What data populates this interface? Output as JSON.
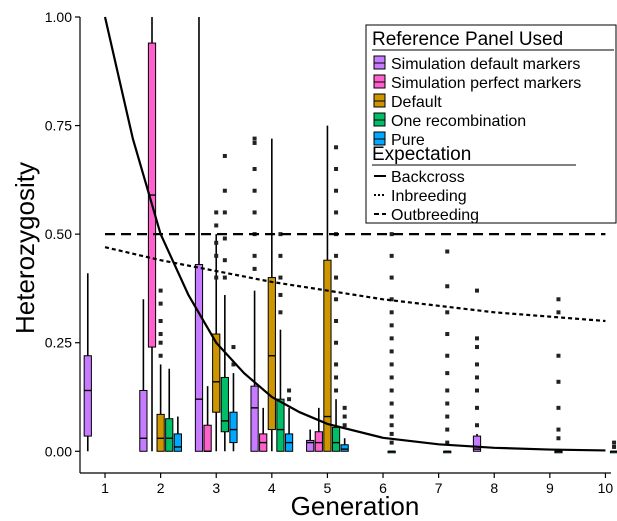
{
  "chart_data": {
    "type": "box",
    "xlabel": "Generation",
    "ylabel": "Heterozygosity",
    "categories": [
      "1",
      "2",
      "3",
      "4",
      "5",
      "6",
      "7",
      "8",
      "9",
      "10"
    ],
    "xlim": [
      0.55,
      10.1
    ],
    "ylim": [
      -0.05,
      1.0
    ],
    "yticks": [
      0.0,
      0.25,
      0.5,
      0.75,
      1.0
    ],
    "ytick_labels": [
      "0.00",
      "0.25",
      "0.50",
      "0.75",
      "1.00"
    ],
    "grid": false,
    "legend_position": "top-right",
    "legend": {
      "fill_title": "Reference Panel Used",
      "fill_entries": [
        {
          "name": "Simulation default markers",
          "color": "#c77cff"
        },
        {
          "name": "Simulation perfect markers",
          "color": "#ff61cc"
        },
        {
          "name": "Default",
          "color": "#cd9600"
        },
        {
          "name": "One recombination",
          "color": "#00be67"
        },
        {
          "name": "Pure",
          "color": "#00a9ff"
        }
      ],
      "line_title": "Expectation",
      "line_entries": [
        {
          "name": "Backcross",
          "style": "solid"
        },
        {
          "name": "Inbreeding",
          "style": "dotted"
        },
        {
          "name": "Outbreeding",
          "style": "dashed"
        }
      ]
    },
    "series_colors": {
      "sim_default": "#c77cff",
      "sim_perfect": "#ff61cc",
      "default": "#cd9600",
      "one_recomb": "#00be67",
      "pure": "#00a9ff"
    },
    "boxes": [
      {
        "gen": 1,
        "series": "sim_default",
        "q1": 0.035,
        "median": 0.14,
        "q3": 0.22,
        "whisker_low": 0.0,
        "whisker_high": 0.41,
        "outliers": []
      },
      {
        "gen": 2,
        "series": "sim_default",
        "q1": 0.0,
        "median": 0.03,
        "q3": 0.14,
        "whisker_low": 0.0,
        "whisker_high": 0.35,
        "outliers": []
      },
      {
        "gen": 2,
        "series": "sim_perfect",
        "q1": 0.24,
        "median": 0.59,
        "q3": 0.94,
        "whisker_low": 0.0,
        "whisker_high": 1.0,
        "outliers": []
      },
      {
        "gen": 2,
        "series": "default",
        "q1": 0.0,
        "median": 0.03,
        "q3": 0.085,
        "whisker_low": 0.0,
        "whisker_high": 0.2,
        "outliers": [
          0.37,
          0.34,
          0.3,
          0.27,
          0.25,
          0.22
        ]
      },
      {
        "gen": 2,
        "series": "one_recomb",
        "q1": 0.0,
        "median": 0.03,
        "q3": 0.075,
        "whisker_low": 0.0,
        "whisker_high": 0.19,
        "outliers": []
      },
      {
        "gen": 2,
        "series": "pure",
        "q1": 0.0,
        "median": 0.01,
        "q3": 0.04,
        "whisker_low": 0.0,
        "whisker_high": 0.08,
        "outliers": []
      },
      {
        "gen": 3,
        "series": "sim_default",
        "q1": 0.0,
        "median": 0.12,
        "q3": 0.43,
        "whisker_low": 0.0,
        "whisker_high": 1.0,
        "outliers": []
      },
      {
        "gen": 3,
        "series": "sim_perfect",
        "q1": 0.0,
        "median": 0.0,
        "q3": 0.06,
        "whisker_low": 0.0,
        "whisker_high": 0.15,
        "outliers": []
      },
      {
        "gen": 3,
        "series": "default",
        "q1": 0.09,
        "median": 0.16,
        "q3": 0.27,
        "whisker_low": 0.0,
        "whisker_high": 0.5,
        "outliers": [
          0.55,
          0.52,
          0.48,
          0.45,
          0.4
        ]
      },
      {
        "gen": 3,
        "series": "one_recomb",
        "q1": 0.045,
        "median": 0.07,
        "q3": 0.17,
        "whisker_low": 0.0,
        "whisker_high": 0.36,
        "outliers": [
          0.68,
          0.6,
          0.55,
          0.49,
          0.44,
          0.4
        ]
      },
      {
        "gen": 3,
        "series": "pure",
        "q1": 0.02,
        "median": 0.05,
        "q3": 0.09,
        "whisker_low": 0.0,
        "whisker_high": 0.18,
        "outliers": [
          0.24,
          0.2
        ]
      },
      {
        "gen": 4,
        "series": "sim_default",
        "q1": 0.0,
        "median": 0.1,
        "q3": 0.15,
        "whisker_low": 0.0,
        "whisker_high": 0.37,
        "outliers": [
          0.72,
          0.71,
          0.65,
          0.6,
          0.55,
          0.5,
          0.45,
          0.42
        ]
      },
      {
        "gen": 4,
        "series": "sim_perfect",
        "q1": 0.0,
        "median": 0.02,
        "q3": 0.04,
        "whisker_low": 0.0,
        "whisker_high": 0.1,
        "outliers": []
      },
      {
        "gen": 4,
        "series": "default",
        "q1": 0.05,
        "median": 0.22,
        "q3": 0.4,
        "whisker_low": 0.0,
        "whisker_high": 0.72,
        "outliers": []
      },
      {
        "gen": 4,
        "series": "one_recomb",
        "q1": 0.0,
        "median": 0.05,
        "q3": 0.12,
        "whisker_low": 0.0,
        "whisker_high": 0.28,
        "outliers": [
          0.5,
          0.45,
          0.4,
          0.36,
          0.32
        ]
      },
      {
        "gen": 4,
        "series": "pure",
        "q1": 0.0,
        "median": 0.02,
        "q3": 0.04,
        "whisker_low": 0.0,
        "whisker_high": 0.1,
        "outliers": [
          0.14,
          0.12
        ]
      },
      {
        "gen": 5,
        "series": "sim_default",
        "q1": 0.0,
        "median": 0.02,
        "q3": 0.025,
        "whisker_low": 0.0,
        "whisker_high": 0.05,
        "outliers": []
      },
      {
        "gen": 5,
        "series": "sim_perfect",
        "q1": 0.0,
        "median": 0.02,
        "q3": 0.045,
        "whisker_low": 0.0,
        "whisker_high": 0.1,
        "outliers": []
      },
      {
        "gen": 5,
        "series": "default",
        "q1": 0.0,
        "median": 0.08,
        "q3": 0.44,
        "whisker_low": 0.0,
        "whisker_high": 0.75,
        "outliers": []
      },
      {
        "gen": 5,
        "series": "one_recomb",
        "q1": 0.0,
        "median": 0.02,
        "q3": 0.055,
        "whisker_low": 0.0,
        "whisker_high": 0.12,
        "outliers": [
          0.7,
          0.65,
          0.6,
          0.55,
          0.5,
          0.45,
          0.4,
          0.35,
          0.3,
          0.25,
          0.2,
          0.17,
          0.14
        ]
      },
      {
        "gen": 5,
        "series": "pure",
        "q1": 0.0,
        "median": 0.005,
        "q3": 0.015,
        "whisker_low": 0.0,
        "whisker_high": 0.03,
        "outliers": [
          0.1,
          0.08,
          0.06
        ]
      },
      {
        "gen": 6,
        "series": "one_recomb",
        "q1": 0.0,
        "median": 0.0,
        "q3": 0.0,
        "whisker_low": 0.0,
        "whisker_high": 0.0,
        "outliers": [
          0.56,
          0.5,
          0.45,
          0.4,
          0.35,
          0.32,
          0.29,
          0.26,
          0.23,
          0.2,
          0.17,
          0.14,
          0.11,
          0.08,
          0.06,
          0.04,
          0.02
        ]
      },
      {
        "gen": 7,
        "series": "one_recomb",
        "q1": 0.0,
        "median": 0.0,
        "q3": 0.0,
        "whisker_low": 0.0,
        "whisker_high": 0.0,
        "outliers": [
          0.46,
          0.38,
          0.32,
          0.27,
          0.22,
          0.18,
          0.14,
          0.11,
          0.08,
          0.05,
          0.02
        ]
      },
      {
        "gen": 8,
        "series": "sim_default",
        "q1": 0.0,
        "median": 0.005,
        "q3": 0.035,
        "whisker_low": 0.0,
        "whisker_high": 0.04,
        "outliers": [
          0.37,
          0.26,
          0.24,
          0.2,
          0.17,
          0.14,
          0.1,
          0.06
        ]
      },
      {
        "gen": 9,
        "series": "one_recomb",
        "q1": 0.0,
        "median": 0.0,
        "q3": 0.0,
        "whisker_low": 0.0,
        "whisker_high": 0.0,
        "outliers": [
          0.35,
          0.32,
          0.22,
          0.16,
          0.1,
          0.05,
          0.03
        ]
      },
      {
        "gen": 10,
        "series": "one_recomb",
        "q1": 0.0,
        "median": 0.0,
        "q3": 0.0,
        "whisker_low": 0.0,
        "whisker_high": 0.0,
        "outliers": [
          0.02,
          0.01
        ]
      }
    ],
    "lines": [
      {
        "name": "Backcross",
        "style": "solid",
        "x": [
          1,
          1.5,
          2,
          2.5,
          3,
          3.5,
          4,
          4.5,
          5,
          6,
          7,
          8,
          9,
          10
        ],
        "y": [
          1.0,
          0.72,
          0.5,
          0.36,
          0.25,
          0.18,
          0.125,
          0.09,
          0.063,
          0.031,
          0.016,
          0.008,
          0.004,
          0.002
        ]
      },
      {
        "name": "Inbreeding",
        "style": "dotted",
        "x": [
          1,
          2,
          3,
          4,
          5,
          6,
          7,
          8,
          9,
          10
        ],
        "y": [
          0.47,
          0.44,
          0.415,
          0.39,
          0.37,
          0.35,
          0.335,
          0.32,
          0.31,
          0.3
        ]
      },
      {
        "name": "Outbreeding",
        "style": "dashed",
        "x": [
          1,
          10
        ],
        "y": [
          0.5,
          0.5
        ]
      }
    ]
  }
}
